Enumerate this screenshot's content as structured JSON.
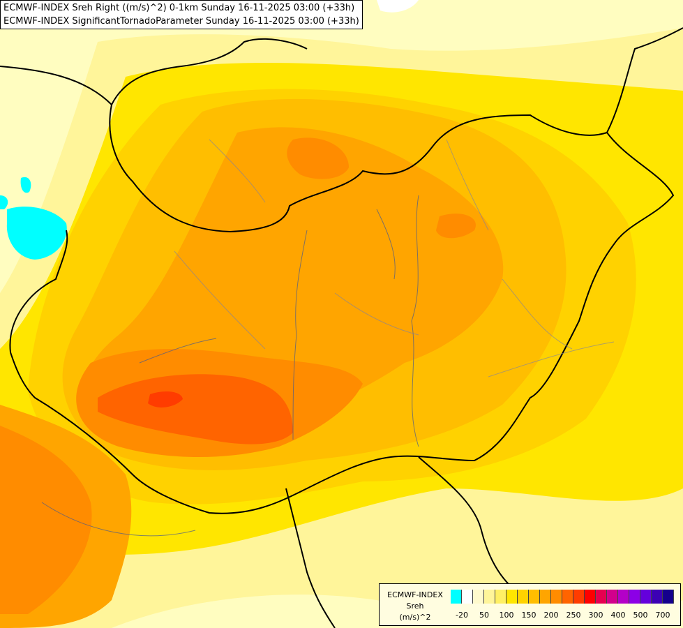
{
  "map": {
    "title_line1": "ECMWF-INDEX Sreh Right ((m/s)^2) 0-1km Sunday 16-11-2025 03:00 (+33h)",
    "title_line2": "ECMWF-INDEX SignificantTornadoParameter Sunday 16-11-2025 03:00 (+33h)"
  },
  "legend": {
    "line1": "ECMWF-INDEX",
    "line2": "Sreh",
    "line3": "(m/s)^2",
    "ticks": [
      "-20",
      "50",
      "100",
      "150",
      "200",
      "250",
      "300",
      "400",
      "500",
      "700"
    ],
    "colors": [
      "#00ffff",
      "#ffffff",
      "#fffacd",
      "#fff59a",
      "#fff064",
      "#ffe600",
      "#ffd200",
      "#ffbe00",
      "#ffa500",
      "#ff8c00",
      "#ff6400",
      "#ff3c00",
      "#ff0000",
      "#e60050",
      "#d2008c",
      "#b400c8",
      "#8c00e6",
      "#6400dc",
      "#3c00b4",
      "#14008c"
    ]
  },
  "field_colors": {
    "pale": "#fffdc0",
    "light_yellow": "#fff59a",
    "yellow": "#ffe600",
    "gold": "#ffd200",
    "light_orange": "#ffbe00",
    "orange": "#ffa500",
    "dark_orange": "#ff8c00",
    "red_orange": "#ff6400",
    "red": "#ff3c00",
    "cyan": "#00ffff"
  }
}
